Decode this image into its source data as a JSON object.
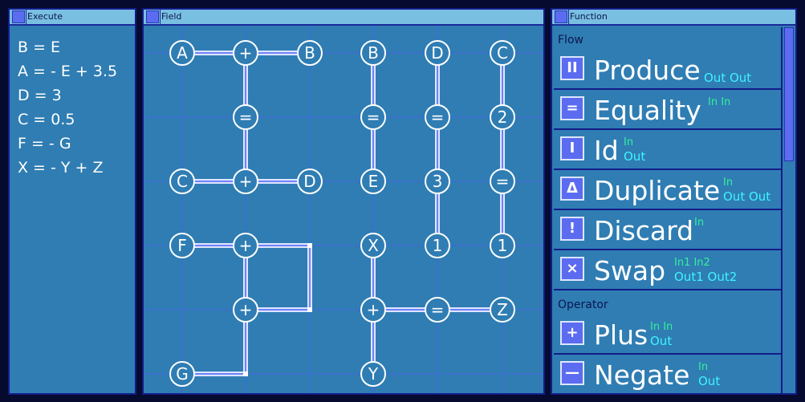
{
  "execute": {
    "title": "Execute",
    "lines": [
      "B = E",
      "A = - E + 3.5",
      "D = 3",
      "C = 0.5",
      "F = - G",
      "X = - Y + Z"
    ]
  },
  "field": {
    "title": "Field",
    "nodes": [
      "A",
      "+",
      "B",
      "=",
      "C",
      "+",
      "D",
      "F",
      "+",
      "+",
      "G",
      "B",
      "=",
      "E",
      "X",
      "+",
      "Y",
      "D",
      "=",
      "3",
      "1",
      "=",
      "C",
      "2",
      "=",
      "1",
      "Z"
    ]
  },
  "function": {
    "title": "Function",
    "sections": {
      "flow": "Flow",
      "operator": "Operator"
    },
    "items": [
      {
        "icon": "pause-icon",
        "glyph": "II",
        "name": "Produce",
        "in": "",
        "out": "Out  Out"
      },
      {
        "icon": "equals-icon",
        "glyph": "=",
        "name": "Equality",
        "in": "In  In",
        "out": ""
      },
      {
        "icon": "id-icon",
        "glyph": "I",
        "name": "Id",
        "in": "In",
        "out": "Out"
      },
      {
        "icon": "delta-icon",
        "glyph": "Δ",
        "name": "Duplicate",
        "in": "In",
        "out": "Out  Out"
      },
      {
        "icon": "exclaim-icon",
        "glyph": "!",
        "name": "Discard",
        "in": "In",
        "out": ""
      },
      {
        "icon": "swap-icon",
        "glyph": "×",
        "name": "Swap",
        "in": "In1  In2",
        "out": "Out1  Out2"
      },
      {
        "icon": "plus-icon",
        "glyph": "+",
        "name": "Plus",
        "in": "In  In",
        "out": "Out"
      },
      {
        "icon": "minus-icon",
        "glyph": "—",
        "name": "Negate",
        "in": "In",
        "out": "Out"
      }
    ]
  },
  "colors": {
    "panel": "#2f7db3",
    "titlebar": "#79bfe1",
    "accent": "#5b6cf0",
    "in": "#35f09a",
    "out": "#3ff3ff"
  }
}
